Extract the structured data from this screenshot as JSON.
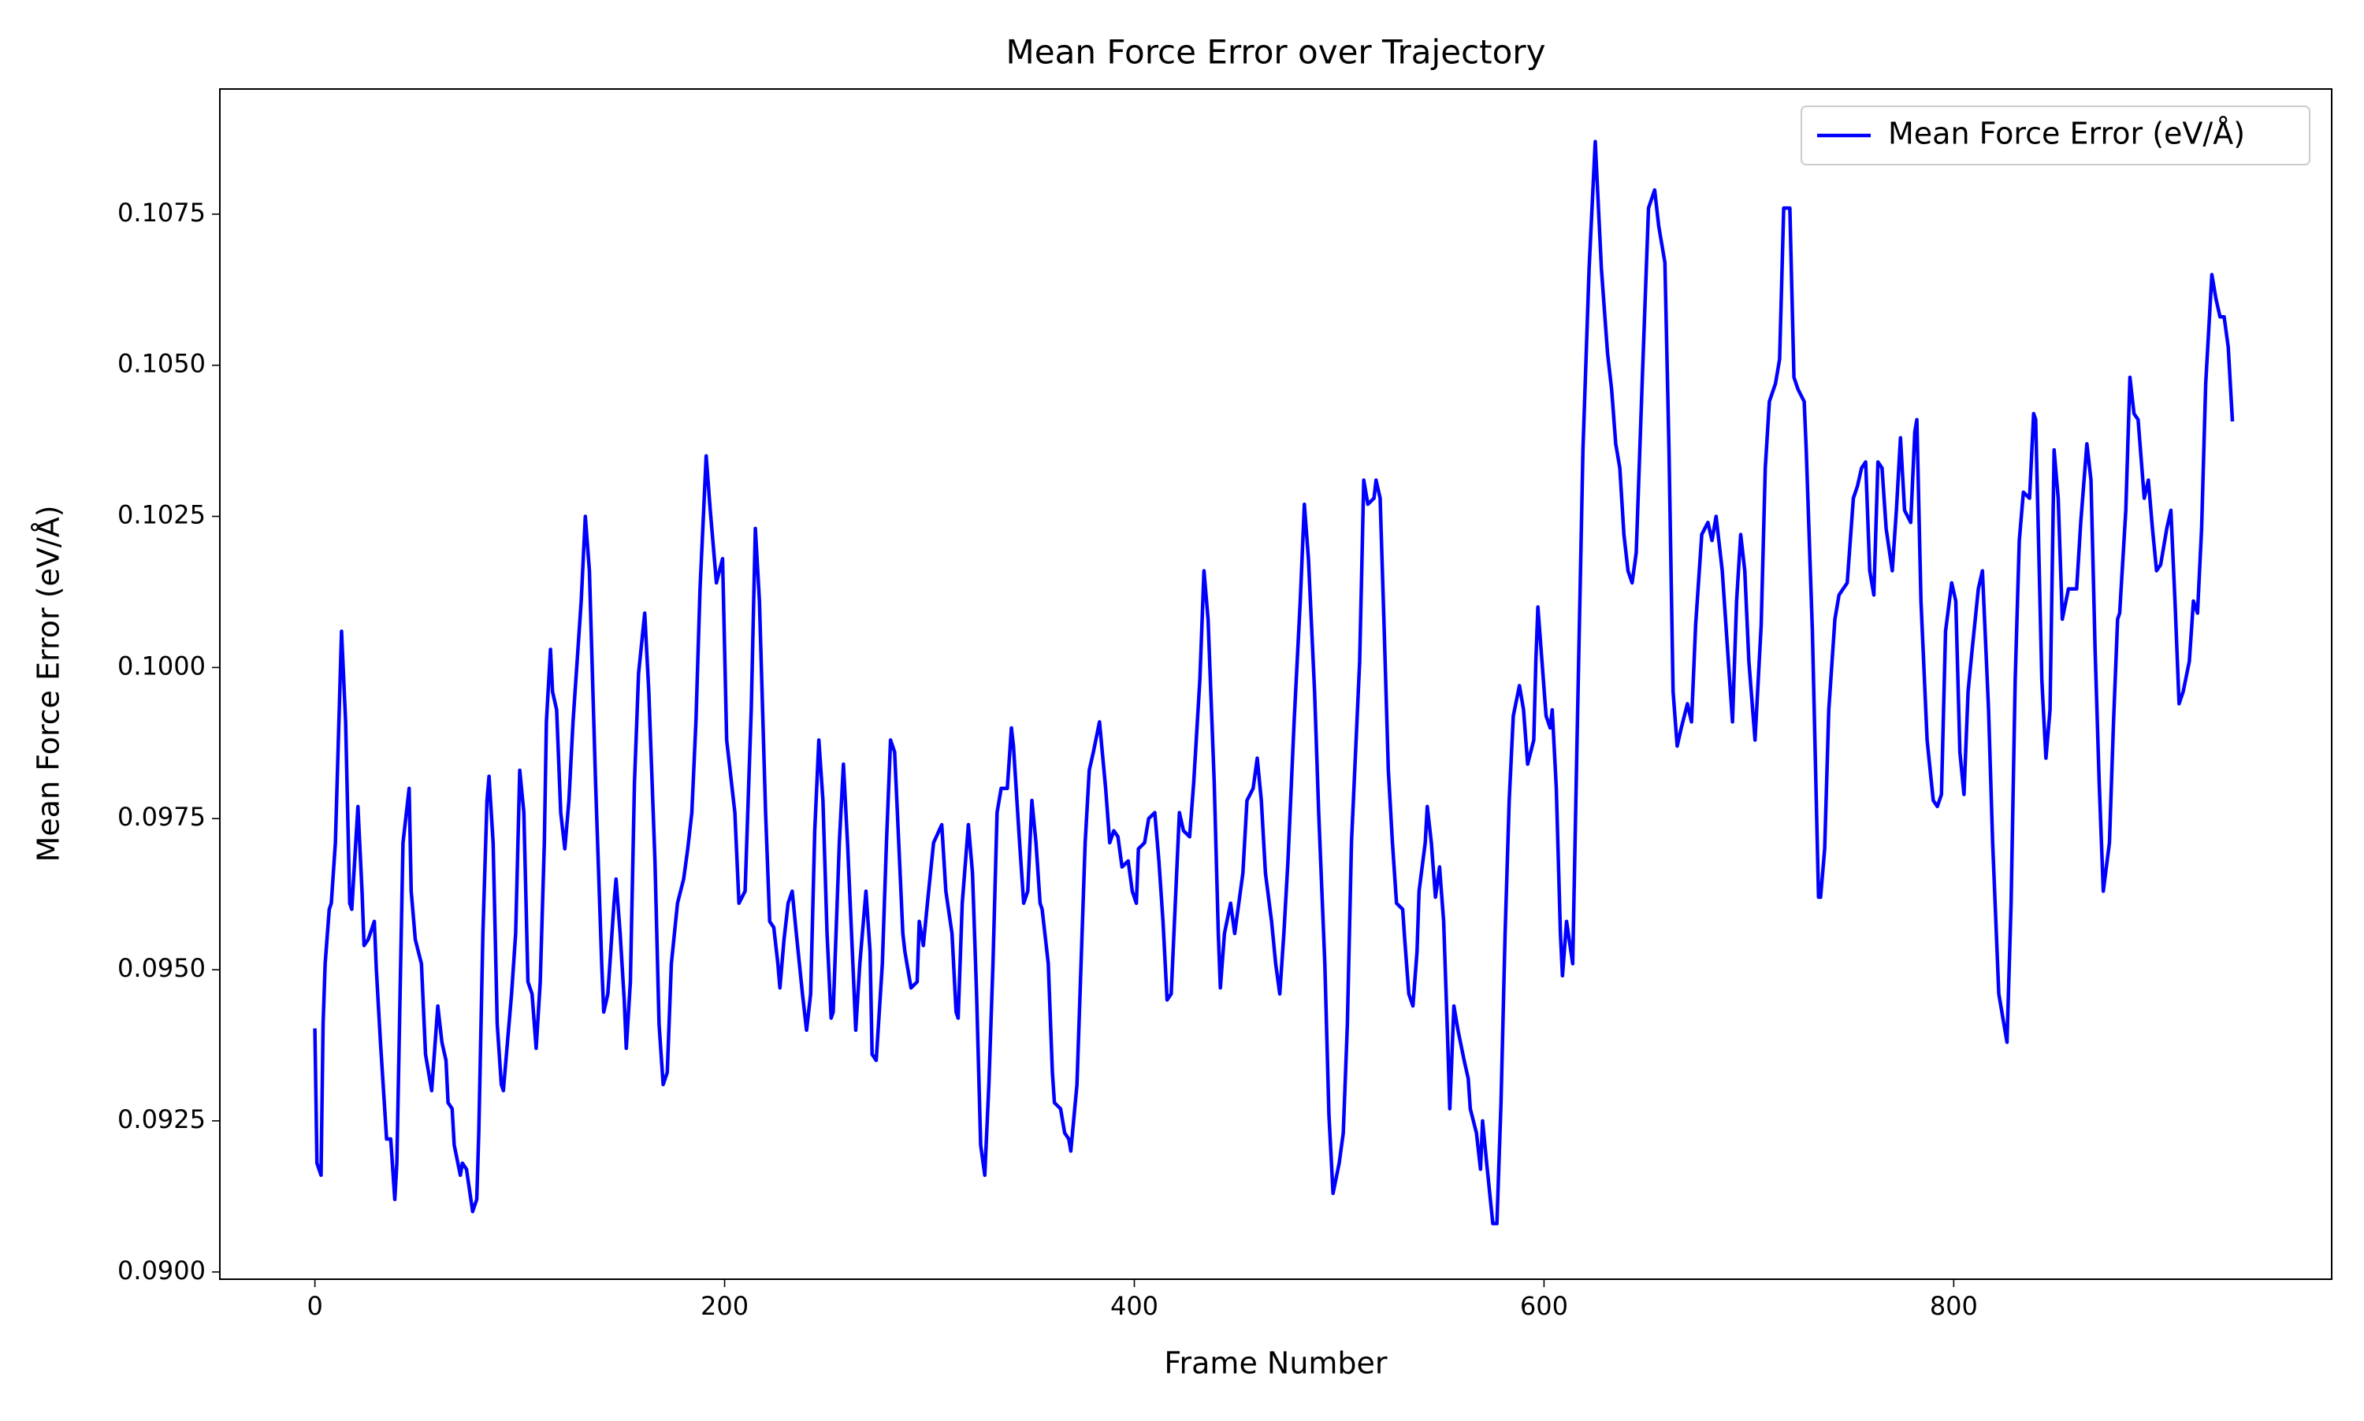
{
  "chart_data": {
    "type": "line",
    "title": "Mean Force Error over Trajectory",
    "x_label": "Frame Number",
    "y_label": "Mean Force Error (eV/Å)",
    "legend": "upper right",
    "grid": false,
    "xlim": [
      -46.4,
      984.5
    ],
    "ylim": [
      0.08988,
      0.10957
    ],
    "xticks": [
      0,
      200,
      400,
      600,
      800
    ],
    "yticks": [
      {
        "value": 0.09,
        "label": "0.0900"
      },
      0.0925,
      {
        "value": 0.095,
        "label": "0.0950"
      },
      0.0975,
      {
        "value": 0.1,
        "label": "0.1000"
      },
      0.1025,
      {
        "value": 0.105,
        "label": "0.1050"
      },
      0.1075
    ],
    "x": [
      0,
      1,
      3,
      4,
      5,
      7,
      8,
      10,
      13,
      15,
      17,
      18,
      21,
      23,
      24,
      26,
      29,
      30,
      32,
      35,
      37,
      39,
      40,
      43,
      46,
      47,
      49,
      52,
      54,
      57,
      60,
      62,
      64,
      65,
      67,
      68,
      71,
      72,
      74,
      77,
      79,
      80,
      82,
      84,
      85,
      87,
      89,
      91,
      92,
      94,
      96,
      98,
      100,
      102,
      104,
      106,
      108,
      110,
      112,
      113,
      115,
      116,
      118,
      120,
      122,
      124,
      126,
      127,
      130,
      132,
      134,
      137,
      140,
      141,
      143,
      146,
      147,
      149,
      151,
      152,
      154,
      156,
      158,
      161,
      163,
      166,
      168,
      170,
      172,
      174,
      177,
      180,
      182,
      184,
      186,
      188,
      191,
      193,
      196,
      199,
      201,
      203,
      205,
      207,
      210,
      213,
      215,
      217,
      220,
      222,
      224,
      226,
      227,
      229,
      231,
      233,
      235,
      238,
      240,
      242,
      244,
      246,
      248,
      250,
      252,
      253,
      256,
      258,
      260,
      263,
      264,
      266,
      269,
      271,
      272,
      274,
      277,
      279,
      281,
      283,
      285,
      287,
      288,
      291,
      294,
      295,
      297,
      299,
      302,
      306,
      308,
      311,
      313,
      314,
      316,
      319,
      321,
      323,
      325,
      327,
      329,
      331,
      333,
      335,
      338,
      340,
      341,
      344,
      346,
      348,
      350,
      352,
      354,
      355,
      358,
      360,
      361,
      364,
      366,
      368,
      369,
      372,
      374,
      376,
      378,
      380,
      383,
      386,
      388,
      390,
      392,
      394,
      397,
      399,
      401,
      402,
      405,
      407,
      410,
      412,
      414,
      416,
      418,
      420,
      422,
      424,
      427,
      429,
      432,
      434,
      436,
      439,
      441,
      442,
      444,
      447,
      449,
      451,
      453,
      455,
      458,
      460,
      462,
      464,
      467,
      469,
      471,
      473,
      475,
      478,
      481,
      483,
      485,
      488,
      490,
      493,
      495,
      497,
      500,
      502,
      504,
      506,
      508,
      510,
      512,
      514,
      517,
      518,
      520,
      522,
      524,
      526,
      528,
      531,
      532,
      534,
      536,
      538,
      539,
      542,
      543,
      545,
      547,
      549,
      551,
      553,
      554,
      556,
      558,
      561,
      563,
      564,
      567,
      569,
      570,
      572,
      575,
      577,
      579,
      581,
      583,
      585,
      588,
      590,
      592,
      595,
      596,
      597,
      599,
      601,
      603,
      604,
      606,
      608,
      609,
      611,
      614,
      616,
      619,
      622,
      625,
      628,
      631,
      633,
      635,
      637,
      639,
      641,
      643,
      645,
      648,
      651,
      654,
      656,
      659,
      661,
      663,
      665,
      667,
      670,
      672,
      674,
      677,
      680,
      682,
      684,
      687,
      689,
      692,
      694,
      696,
      698,
      700,
      703,
      706,
      708,
      710,
      713,
      715,
      717,
      720,
      722,
      724,
      727,
      728,
      731,
      734,
      735,
      737,
      739,
      742,
      744,
      746,
      748,
      751,
      753,
      755,
      757,
      759,
      761,
      763,
      765,
      767,
      770,
      772,
      774,
      776,
      779,
      781,
      782,
      784,
      787,
      790,
      792,
      794,
      796,
      799,
      801,
      803,
      805,
      807,
      809,
      812,
      814,
      817,
      819,
      822,
      826,
      828,
      830,
      832,
      834,
      837,
      839,
      840,
      843,
      845,
      847,
      849,
      851,
      853,
      856,
      858,
      860,
      862,
      865,
      867,
      869,
      871,
      873,
      876,
      878,
      880,
      881,
      884,
      886,
      888,
      890,
      893,
      895,
      897,
      899,
      901,
      904,
      906,
      908,
      910,
      912,
      915,
      917,
      919,
      921,
      923,
      926,
      928,
      930,
      932,
      934,
      936
    ],
    "series": [
      {
        "name": "Mean Force Error (eV/Å)",
        "color": "#0000ff",
        "values": [
          0.094,
          0.0918,
          0.0916,
          0.0941,
          0.0951,
          0.096,
          0.0961,
          0.0971,
          0.1006,
          0.0991,
          0.0961,
          0.096,
          0.0977,
          0.0963,
          0.0954,
          0.0955,
          0.0958,
          0.095,
          0.0938,
          0.0922,
          0.0922,
          0.0912,
          0.0918,
          0.0971,
          0.098,
          0.0963,
          0.0955,
          0.0951,
          0.0936,
          0.093,
          0.0944,
          0.0938,
          0.0935,
          0.0928,
          0.0927,
          0.0921,
          0.0916,
          0.0918,
          0.0917,
          0.091,
          0.0912,
          0.0923,
          0.0956,
          0.0978,
          0.0982,
          0.0971,
          0.0941,
          0.0931,
          0.093,
          0.0938,
          0.0946,
          0.0956,
          0.0983,
          0.0976,
          0.0948,
          0.0946,
          0.0937,
          0.0948,
          0.0971,
          0.0991,
          0.1003,
          0.0996,
          0.0993,
          0.0976,
          0.097,
          0.0978,
          0.0991,
          0.0996,
          0.1011,
          0.1025,
          0.1016,
          0.0981,
          0.0951,
          0.0943,
          0.0946,
          0.0961,
          0.0965,
          0.0956,
          0.0945,
          0.0937,
          0.0948,
          0.0981,
          0.0999,
          0.1009,
          0.0996,
          0.0968,
          0.0941,
          0.0931,
          0.0933,
          0.0951,
          0.0961,
          0.0965,
          0.097,
          0.0976,
          0.0991,
          0.1013,
          0.1035,
          0.1026,
          0.1014,
          0.1018,
          0.0988,
          0.0982,
          0.0976,
          0.0961,
          0.0963,
          0.0993,
          0.1023,
          0.1011,
          0.0976,
          0.0958,
          0.0957,
          0.0951,
          0.0947,
          0.0955,
          0.0961,
          0.0963,
          0.0956,
          0.0946,
          0.094,
          0.0946,
          0.0973,
          0.0988,
          0.0978,
          0.0956,
          0.0942,
          0.0943,
          0.0971,
          0.0984,
          0.0971,
          0.0948,
          0.094,
          0.0951,
          0.0963,
          0.0953,
          0.0936,
          0.0935,
          0.0951,
          0.0971,
          0.0988,
          0.0986,
          0.0971,
          0.0956,
          0.0953,
          0.0947,
          0.0948,
          0.0958,
          0.0954,
          0.0961,
          0.0971,
          0.0974,
          0.0963,
          0.0956,
          0.0943,
          0.0942,
          0.0961,
          0.0974,
          0.0966,
          0.0946,
          0.0921,
          0.0916,
          0.0931,
          0.0951,
          0.0976,
          0.098,
          0.098,
          0.099,
          0.0987,
          0.0971,
          0.0961,
          0.0963,
          0.0978,
          0.0971,
          0.0961,
          0.096,
          0.0951,
          0.0933,
          0.0928,
          0.0927,
          0.0923,
          0.0922,
          0.092,
          0.0931,
          0.0951,
          0.0971,
          0.0983,
          0.0986,
          0.0991,
          0.098,
          0.0971,
          0.0973,
          0.0972,
          0.0967,
          0.0968,
          0.0963,
          0.0961,
          0.097,
          0.0971,
          0.0975,
          0.0976,
          0.0968,
          0.0958,
          0.0945,
          0.0946,
          0.0961,
          0.0976,
          0.0973,
          0.0972,
          0.0981,
          0.0998,
          0.1016,
          0.1008,
          0.0981,
          0.0956,
          0.0947,
          0.0956,
          0.0961,
          0.0956,
          0.0961,
          0.0966,
          0.0978,
          0.098,
          0.0985,
          0.0978,
          0.0966,
          0.0958,
          0.0951,
          0.0946,
          0.0956,
          0.0968,
          0.0991,
          0.1011,
          0.1027,
          0.1018,
          0.0996,
          0.0976,
          0.0951,
          0.0926,
          0.0913,
          0.0918,
          0.0923,
          0.0941,
          0.0971,
          0.0986,
          0.1001,
          0.1031,
          0.1027,
          0.1028,
          0.1031,
          0.1028,
          0.1006,
          0.0983,
          0.0971,
          0.0961,
          0.096,
          0.0955,
          0.0946,
          0.0944,
          0.0953,
          0.0963,
          0.0971,
          0.0977,
          0.0971,
          0.0962,
          0.0967,
          0.0958,
          0.0938,
          0.0927,
          0.0944,
          0.094,
          0.0935,
          0.0932,
          0.0927,
          0.0923,
          0.0917,
          0.0925,
          0.0918,
          0.0908,
          0.0908,
          0.0928,
          0.0956,
          0.0978,
          0.0992,
          0.0997,
          0.0993,
          0.0984,
          0.0988,
          0.1001,
          0.101,
          0.1001,
          0.0992,
          0.099,
          0.0993,
          0.098,
          0.0956,
          0.0949,
          0.0958,
          0.0951,
          0.0986,
          0.1036,
          0.1066,
          0.1087,
          0.1066,
          0.1052,
          0.1046,
          0.1037,
          0.1033,
          0.1022,
          0.1016,
          0.1014,
          0.1019,
          0.1048,
          0.1076,
          0.1079,
          0.1073,
          0.1067,
          0.1036,
          0.0996,
          0.0987,
          0.099,
          0.0994,
          0.0991,
          0.1007,
          0.1022,
          0.1024,
          0.1021,
          0.1025,
          0.1016,
          0.1006,
          0.0991,
          0.1011,
          0.1022,
          0.1016,
          0.1001,
          0.0988,
          0.1007,
          0.1033,
          0.1044,
          0.1047,
          0.1051,
          0.1076,
          0.1076,
          0.1048,
          0.1046,
          0.1044,
          0.1036,
          0.1006,
          0.0962,
          0.0962,
          0.097,
          0.0993,
          0.1008,
          0.1012,
          0.1013,
          0.1014,
          0.1028,
          0.103,
          0.1033,
          0.1034,
          0.1016,
          0.1012,
          0.1034,
          0.1033,
          0.1023,
          0.1016,
          0.1026,
          0.1038,
          0.1026,
          0.1024,
          0.1039,
          0.1041,
          0.1011,
          0.0988,
          0.0978,
          0.0977,
          0.0979,
          0.1006,
          0.1014,
          0.1011,
          0.0986,
          0.0979,
          0.0996,
          0.1003,
          0.1013,
          0.1016,
          0.0993,
          0.0971,
          0.0946,
          0.0938,
          0.0961,
          0.0998,
          0.1021,
          0.1029,
          0.1028,
          0.1042,
          0.1041,
          0.0998,
          0.0985,
          0.0993,
          0.1036,
          0.1028,
          0.1008,
          0.1013,
          0.1013,
          0.1013,
          0.1024,
          0.1037,
          0.1031,
          0.1003,
          0.0981,
          0.0963,
          0.0971,
          0.0991,
          0.1008,
          0.1009,
          0.1026,
          0.1048,
          0.1042,
          0.1041,
          0.1028,
          0.1031,
          0.1023,
          0.1016,
          0.1017,
          0.1023,
          0.1026,
          0.1011,
          0.0994,
          0.0996,
          0.1001,
          0.1011,
          0.1009,
          0.1023,
          0.1047,
          0.1065,
          0.1061,
          0.1058,
          0.1058,
          0.1053,
          0.1041
        ]
      }
    ]
  }
}
